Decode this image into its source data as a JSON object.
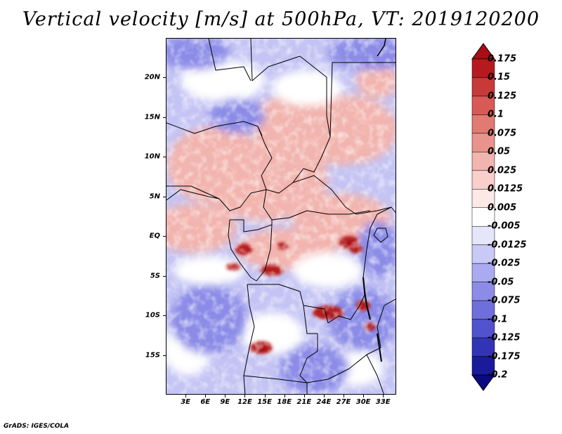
{
  "title": "Vertical velocity [m/s] at 500hPa, VT: 2019120200",
  "credit": "GrADS: IGES/COLA",
  "lat_ticks": [
    "20N",
    "15N",
    "10N",
    "5N",
    "EQ",
    "5S",
    "10S",
    "15S"
  ],
  "lon_ticks": [
    "3E",
    "6E",
    "9E",
    "12E",
    "15E",
    "18E",
    "21E",
    "24E",
    "27E",
    "30E",
    "33E"
  ],
  "colorbar": {
    "labels": [
      "0.175",
      "0.15",
      "0.125",
      "0.1",
      "0.075",
      "0.05",
      "0.025",
      "0.0125",
      "0.005",
      "-0.005",
      "-0.0125",
      "-0.025",
      "-0.05",
      "-0.075",
      "-0.1",
      "-0.125",
      "-0.175",
      "-0.2"
    ],
    "colors": [
      "#a50f15",
      "#b51a1f",
      "#c83a3a",
      "#d85a55",
      "#e07a72",
      "#e8948c",
      "#f2b4ae",
      "#f8cfcb",
      "#fce8e6",
      "#ffffff",
      "#e6e6fb",
      "#c9c9f5",
      "#aaaaf0",
      "#8c8ce8",
      "#6f6fdc",
      "#5252cc",
      "#3333b5",
      "#1a1a9a",
      "#0a0a80"
    ]
  },
  "chart_data": {
    "type": "heatmap",
    "title": "Vertical velocity [m/s] at 500hPa, VT: 2019120200",
    "variable": "Vertical velocity",
    "units": "m/s",
    "level": "500hPa",
    "valid_time": "2019120200",
    "lon_range": [
      0,
      35
    ],
    "lat_range": [
      -20,
      25
    ],
    "contour_levels": [
      -0.2,
      -0.175,
      -0.125,
      -0.1,
      -0.075,
      -0.05,
      -0.025,
      -0.0125,
      -0.005,
      0.005,
      0.0125,
      0.025,
      0.05,
      0.075,
      0.1,
      0.125,
      0.15,
      0.175
    ]
  }
}
